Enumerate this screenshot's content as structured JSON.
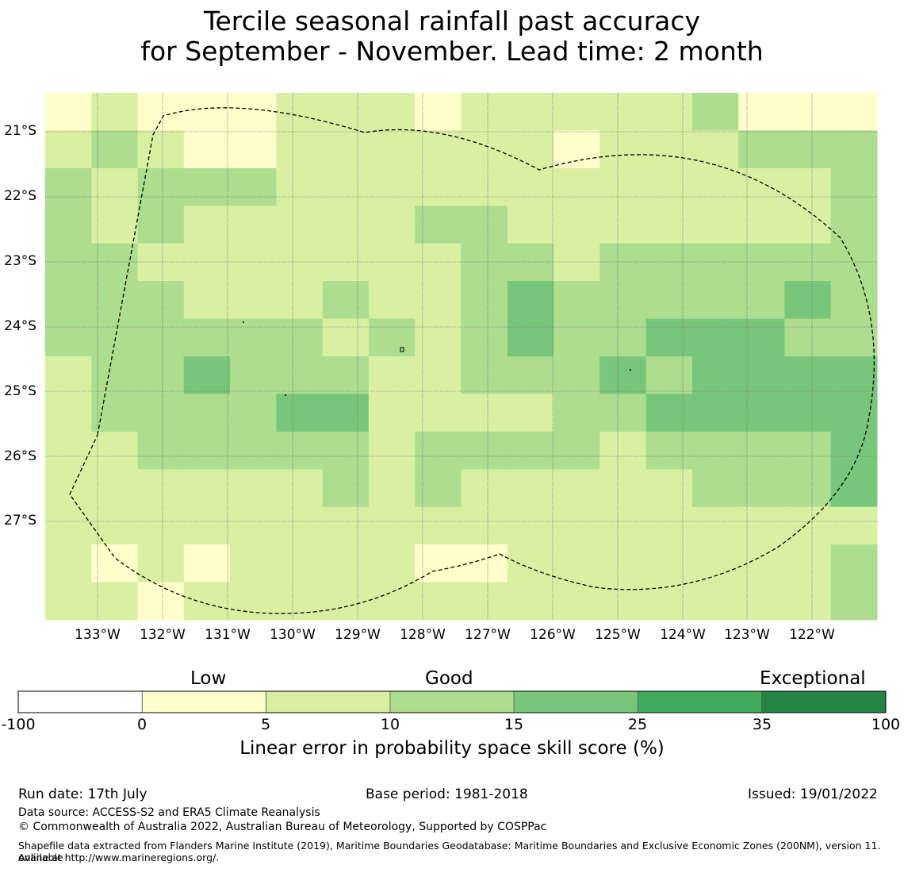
{
  "title": {
    "line1": "Tercile seasonal rainfall past accuracy",
    "line2": "for September - November. Lead time: 2 month"
  },
  "map": {
    "lat_labels": [
      "21°S",
      "22°S",
      "23°S",
      "24°S",
      "25°S",
      "26°S",
      "27°S"
    ],
    "lon_labels": [
      "133°W",
      "132°W",
      "131°W",
      "130°W",
      "129°W",
      "128°W",
      "127°W",
      "126°W",
      "125°W",
      "124°W",
      "123°W",
      "122°W"
    ],
    "grid_classes": [
      [
        1,
        2,
        1,
        1,
        1,
        2,
        2,
        2,
        1,
        2,
        2,
        2,
        2,
        2,
        3,
        1,
        1,
        1
      ],
      [
        2,
        3,
        2,
        1,
        1,
        2,
        2,
        2,
        2,
        2,
        2,
        1,
        2,
        2,
        2,
        3,
        3,
        3
      ],
      [
        3,
        2,
        3,
        3,
        3,
        2,
        2,
        2,
        2,
        2,
        2,
        2,
        2,
        2,
        2,
        2,
        2,
        3
      ],
      [
        3,
        2,
        3,
        2,
        2,
        2,
        2,
        2,
        3,
        3,
        2,
        2,
        2,
        2,
        2,
        2,
        2,
        3
      ],
      [
        3,
        3,
        2,
        2,
        2,
        2,
        2,
        2,
        2,
        3,
        3,
        2,
        3,
        3,
        3,
        3,
        3,
        3
      ],
      [
        3,
        3,
        3,
        2,
        2,
        2,
        3,
        2,
        2,
        3,
        4,
        3,
        3,
        3,
        3,
        3,
        4,
        3
      ],
      [
        3,
        3,
        3,
        3,
        3,
        3,
        2,
        3,
        2,
        3,
        4,
        3,
        3,
        4,
        4,
        4,
        3,
        3
      ],
      [
        2,
        3,
        3,
        4,
        3,
        3,
        3,
        2,
        2,
        3,
        3,
        3,
        4,
        3,
        4,
        4,
        4,
        4
      ],
      [
        2,
        3,
        3,
        3,
        3,
        4,
        4,
        2,
        2,
        2,
        2,
        3,
        3,
        4,
        4,
        4,
        4,
        4
      ],
      [
        2,
        2,
        3,
        3,
        3,
        3,
        3,
        2,
        3,
        3,
        3,
        3,
        2,
        3,
        3,
        3,
        3,
        4
      ],
      [
        2,
        2,
        2,
        2,
        2,
        2,
        3,
        2,
        3,
        2,
        2,
        2,
        2,
        2,
        3,
        3,
        3,
        4
      ],
      [
        2,
        2,
        2,
        2,
        2,
        2,
        2,
        2,
        2,
        2,
        2,
        2,
        2,
        2,
        2,
        2,
        2,
        2
      ],
      [
        2,
        1,
        2,
        1,
        2,
        2,
        2,
        2,
        1,
        1,
        2,
        2,
        2,
        2,
        2,
        2,
        2,
        3
      ],
      [
        2,
        2,
        1,
        2,
        2,
        2,
        2,
        2,
        2,
        2,
        2,
        2,
        2,
        2,
        2,
        2,
        2,
        3
      ]
    ]
  },
  "colorbar": {
    "category_labels": [
      "Low",
      "Good",
      "Exceptional"
    ],
    "tick_labels": [
      "-100",
      "0",
      "5",
      "10",
      "15",
      "25",
      "35",
      "100"
    ],
    "colors": [
      "#ffffff",
      "#ffffcc",
      "#d9f0a3",
      "#addd8e",
      "#78c679",
      "#41ab5d",
      "#238443"
    ],
    "title": "Linear error in probability space skill score (%)"
  },
  "footer": {
    "run_date": "Run date: 17th July",
    "base_period": "Base period: 1981-2018",
    "issued": "Issued: 19/01/2022",
    "data_source": "Data source: ACCESS-S2 and ERA5 Climate Reanalysis",
    "copyright": "© Commonwealth of Australia 2022, Australian Bureau of Meteorology, Supported by COSPPac",
    "shapefile_line1": "Shapefile data extracted from Flanders Marine Institute (2019), Maritime Boundaries Geodatabase: Maritime Boundaries and Exclusive Economic Zones (200NM), version 11. Available",
    "shapefile_line2": "online at http://www.marineregions.org/."
  }
}
